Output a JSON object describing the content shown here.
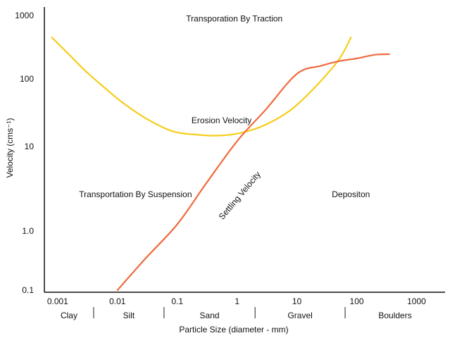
{
  "chart_data": {
    "type": "line",
    "title": "",
    "xlabel": "Particle Size (diameter - mm)",
    "ylabel": "Velocity (cms⁻¹)",
    "x_scale": "log",
    "y_scale": "log",
    "xlim": [
      0.0006,
      3000
    ],
    "ylim": [
      0.1,
      1000
    ],
    "x_ticks": [
      {
        "value": 0.001,
        "label": "0.001"
      },
      {
        "value": 0.01,
        "label": "0.01"
      },
      {
        "value": 0.1,
        "label": "0.1"
      },
      {
        "value": 1,
        "label": "1"
      },
      {
        "value": 10,
        "label": "10"
      },
      {
        "value": 100,
        "label": "100"
      },
      {
        "value": 1000,
        "label": "1000"
      }
    ],
    "y_ticks": [
      {
        "value": 0.1,
        "label": "0.1"
      },
      {
        "value": 1,
        "label": "1.0"
      },
      {
        "value": 10,
        "label": "10"
      },
      {
        "value": 100,
        "label": "100"
      },
      {
        "value": 1000,
        "label": "1000"
      }
    ],
    "grid": false,
    "series": [
      {
        "name": "Erosion Velocity",
        "color": "#f6cd1a",
        "points": [
          [
            0.0008,
            450
          ],
          [
            0.0015,
            250
          ],
          [
            0.003,
            130
          ],
          [
            0.006,
            75
          ],
          [
            0.012,
            45
          ],
          [
            0.03,
            26
          ],
          [
            0.08,
            17
          ],
          [
            0.2,
            15
          ],
          [
            0.5,
            14.5
          ],
          [
            1.2,
            16
          ],
          [
            3,
            21
          ],
          [
            8,
            35
          ],
          [
            20,
            75
          ],
          [
            50,
            200
          ],
          [
            80,
            450
          ]
        ]
      },
      {
        "name": "Settling Velocity",
        "color": "#ef6b3e",
        "points": [
          [
            0.01,
            0.1
          ],
          [
            0.03,
            0.35
          ],
          [
            0.1,
            1.2
          ],
          [
            0.3,
            3.6
          ],
          [
            1,
            12
          ],
          [
            3,
            35
          ],
          [
            10,
            120
          ],
          [
            25,
            160
          ],
          [
            50,
            190
          ],
          [
            100,
            210
          ],
          [
            200,
            240
          ],
          [
            350,
            245
          ]
        ]
      }
    ],
    "particle_classes": [
      {
        "name": "Clay",
        "from": 0.0006,
        "to": 0.004
      },
      {
        "name": "Silt",
        "from": 0.004,
        "to": 0.06
      },
      {
        "name": "Sand",
        "from": 0.06,
        "to": 2
      },
      {
        "name": "Gravel",
        "from": 2,
        "to": 64
      },
      {
        "name": "Boulders",
        "from": 64,
        "to": 3000
      }
    ],
    "annotations": [
      {
        "text": "Transporation By Traction",
        "x": 0.9,
        "y": 800
      },
      {
        "text": "Erosion Velocity",
        "x": 0.55,
        "y": 22
      },
      {
        "text": "Transportation By Suspension",
        "x": 0.02,
        "y": 2.5
      },
      {
        "text": "Settling Velocity",
        "x": 1.2,
        "y": 2.5
      },
      {
        "text": "Depositon",
        "x": 80,
        "y": 2.5
      }
    ]
  }
}
